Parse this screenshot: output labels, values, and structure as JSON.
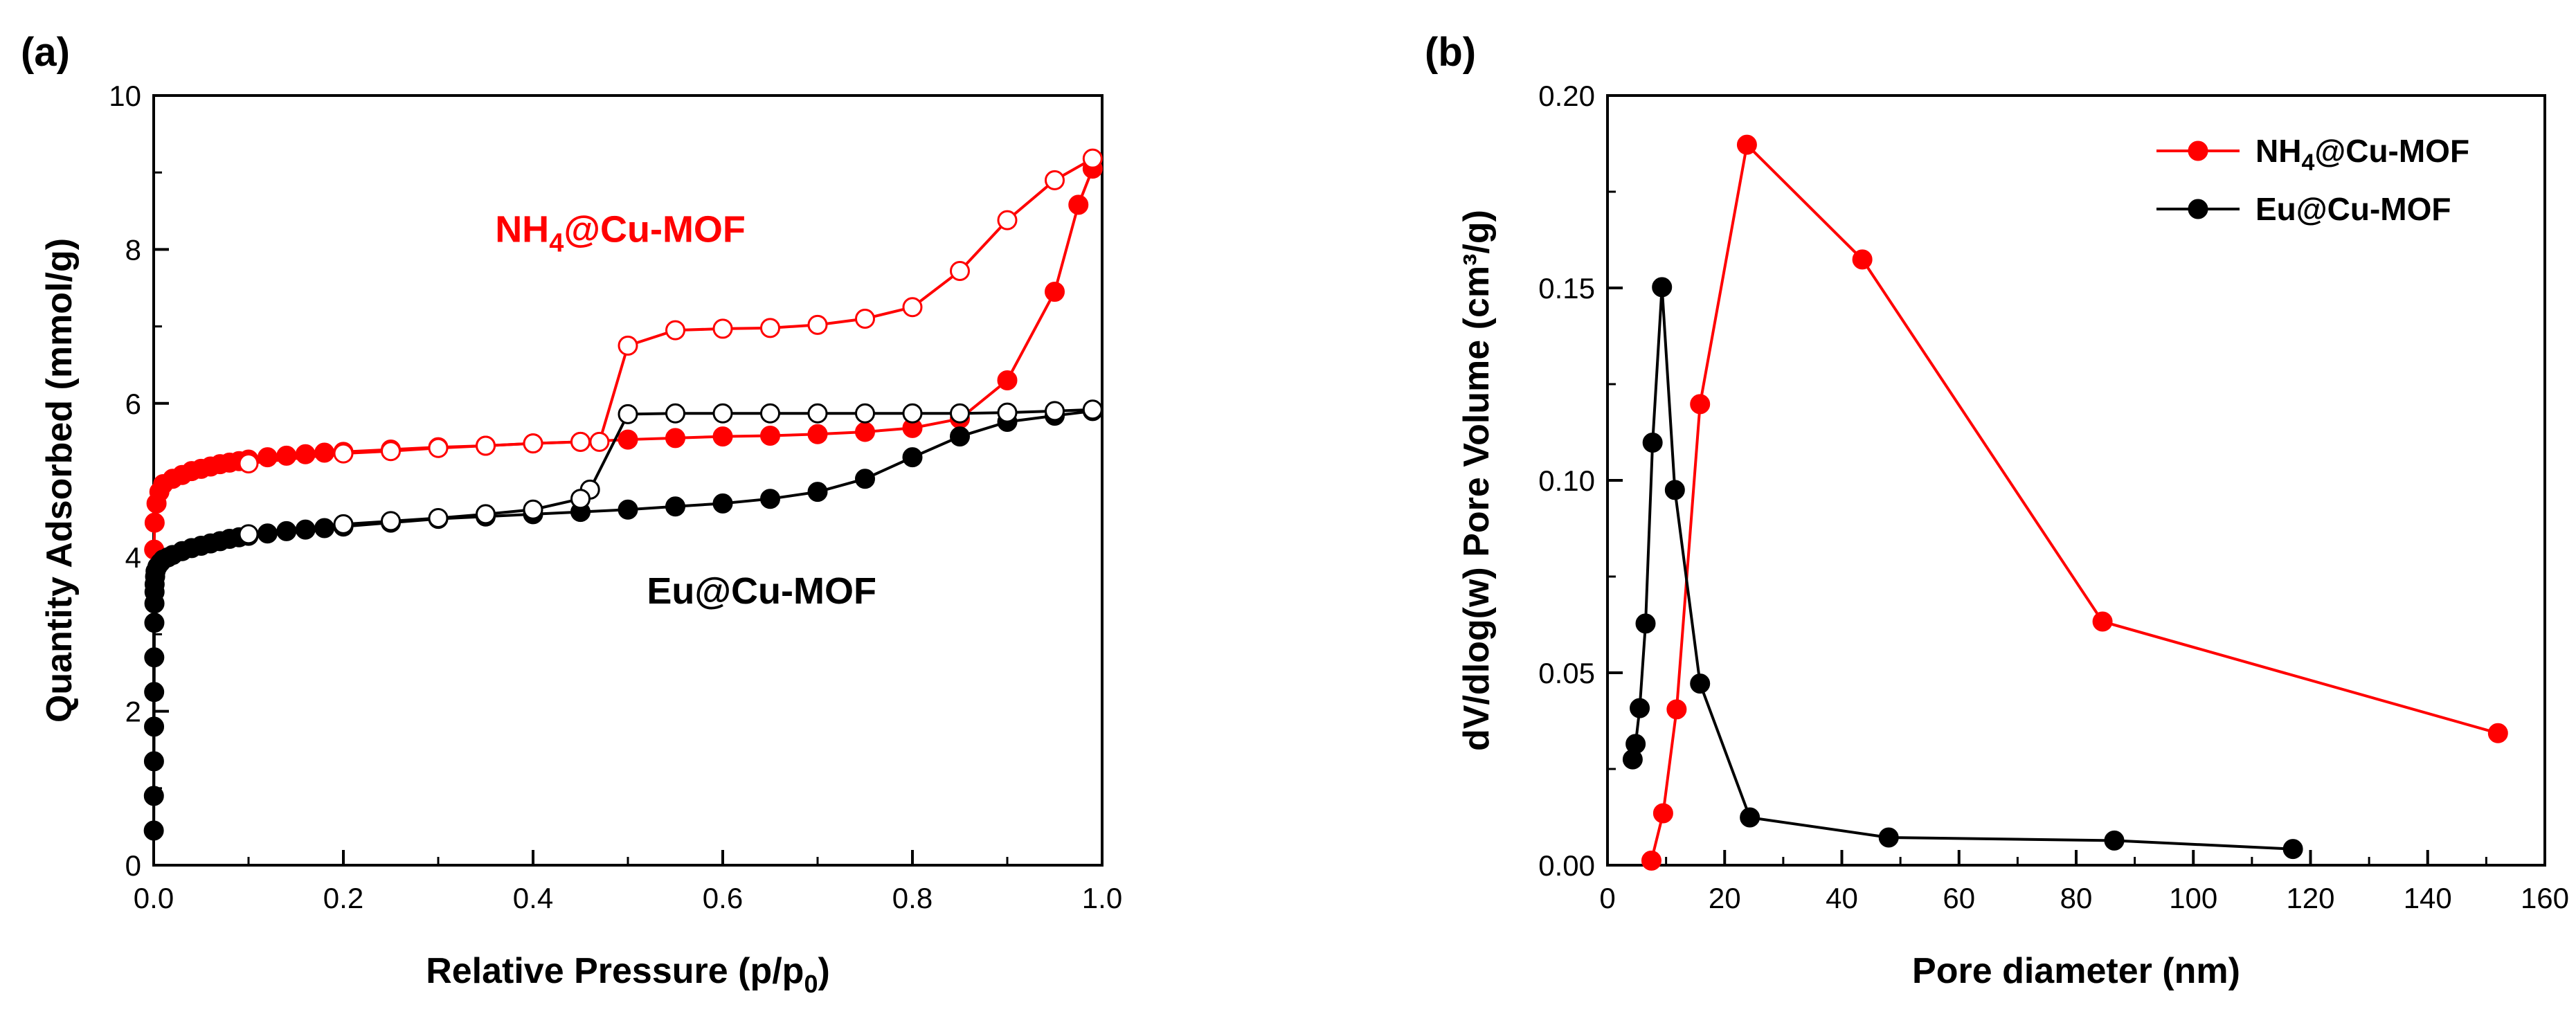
{
  "chart_data": [
    {
      "panel": "(a)",
      "type": "line",
      "title": "",
      "xlabel": "Relative Pressure (p/p0)",
      "xlabel_parts": {
        "main": "Relative Pressure (p/p",
        "sub": "0",
        "close": ")"
      },
      "ylabel": "Quantity Adsorbed (mmol/g)",
      "xlim": [
        0,
        1.0
      ],
      "ylim": [
        0,
        10
      ],
      "xticks": [
        "0.0",
        "0.2",
        "0.4",
        "0.6",
        "0.8",
        "1.0"
      ],
      "yticks": [
        "0",
        "2",
        "4",
        "6",
        "8",
        "10"
      ],
      "annotations": [
        {
          "text": "NH4@Cu-MOF",
          "parts": {
            "a": "NH",
            "sub": "4",
            "b": "@Cu-MOF"
          },
          "color": "#ff0000",
          "x": 0.36,
          "y": 8.1
        },
        {
          "text": "Eu@Cu-MOF",
          "color": "#000000",
          "x": 0.52,
          "y": 3.4
        }
      ],
      "series": [
        {
          "name": "NH4@Cu-MOF adsorption",
          "color": "#ff0000",
          "marker": "filled",
          "x": [
            0.0005,
            0.001,
            0.003,
            0.006,
            0.01,
            0.02,
            0.03,
            0.04,
            0.05,
            0.06,
            0.07,
            0.08,
            0.09,
            0.1,
            0.12,
            0.14,
            0.16,
            0.18,
            0.2,
            0.25,
            0.3,
            0.35,
            0.4,
            0.45,
            0.5,
            0.55,
            0.6,
            0.65,
            0.7,
            0.75,
            0.8,
            0.85,
            0.9,
            0.95,
            0.975,
            0.99
          ],
          "y": [
            4.1,
            4.45,
            4.7,
            4.85,
            4.95,
            5.02,
            5.07,
            5.12,
            5.15,
            5.18,
            5.21,
            5.23,
            5.25,
            5.27,
            5.3,
            5.32,
            5.34,
            5.36,
            5.37,
            5.4,
            5.43,
            5.45,
            5.48,
            5.5,
            5.53,
            5.55,
            5.57,
            5.58,
            5.6,
            5.63,
            5.68,
            5.8,
            6.3,
            7.45,
            8.58,
            9.05
          ]
        },
        {
          "name": "NH4@Cu-MOF desorption",
          "color": "#ff0000",
          "marker": "open",
          "x": [
            0.99,
            0.95,
            0.9,
            0.85,
            0.8,
            0.75,
            0.7,
            0.65,
            0.6,
            0.55,
            0.5,
            0.47,
            0.45,
            0.4,
            0.35,
            0.3,
            0.25,
            0.2,
            0.1
          ],
          "y": [
            9.18,
            8.9,
            8.38,
            7.72,
            7.25,
            7.1,
            7.02,
            6.98,
            6.97,
            6.95,
            6.75,
            5.5,
            5.5,
            5.48,
            5.45,
            5.42,
            5.38,
            5.35,
            5.22
          ]
        },
        {
          "name": "Eu@Cu-MOF adsorption",
          "color": "#000000",
          "marker": "filled",
          "x": [
            0.0001,
            0.0002,
            0.0003,
            0.0004,
            0.0005,
            0.0006,
            0.0007,
            0.0008,
            0.0009,
            0.001,
            0.0015,
            0.002,
            0.004,
            0.007,
            0.01,
            0.015,
            0.02,
            0.03,
            0.04,
            0.05,
            0.06,
            0.07,
            0.08,
            0.09,
            0.1,
            0.12,
            0.14,
            0.16,
            0.18,
            0.2,
            0.25,
            0.3,
            0.35,
            0.4,
            0.45,
            0.5,
            0.55,
            0.6,
            0.65,
            0.7,
            0.75,
            0.8,
            0.85,
            0.9,
            0.95,
            0.99
          ],
          "y": [
            0.45,
            0.9,
            1.35,
            1.8,
            2.25,
            2.7,
            3.15,
            3.4,
            3.55,
            3.65,
            3.75,
            3.82,
            3.88,
            3.93,
            3.97,
            4.0,
            4.03,
            4.08,
            4.12,
            4.15,
            4.18,
            4.21,
            4.24,
            4.26,
            4.28,
            4.31,
            4.34,
            4.36,
            4.38,
            4.4,
            4.45,
            4.5,
            4.53,
            4.56,
            4.59,
            4.62,
            4.66,
            4.7,
            4.76,
            4.85,
            5.02,
            5.3,
            5.57,
            5.76,
            5.84,
            5.9
          ]
        },
        {
          "name": "Eu@Cu-MOF desorption",
          "color": "#000000",
          "marker": "open",
          "x": [
            0.99,
            0.95,
            0.9,
            0.85,
            0.8,
            0.75,
            0.7,
            0.65,
            0.6,
            0.55,
            0.5,
            0.46,
            0.45,
            0.4,
            0.35,
            0.3,
            0.25,
            0.2,
            0.1
          ],
          "y": [
            5.92,
            5.9,
            5.88,
            5.87,
            5.87,
            5.87,
            5.87,
            5.87,
            5.87,
            5.87,
            5.86,
            4.88,
            4.76,
            4.62,
            4.56,
            4.51,
            4.47,
            4.43,
            4.3
          ]
        }
      ]
    },
    {
      "panel": "(b)",
      "type": "line",
      "title": "",
      "xlabel": "Pore diameter (nm)",
      "ylabel": "dV/dlog(w) Pore Volume (cm³/g)",
      "xlim": [
        0,
        160
      ],
      "ylim": [
        0,
        0.2
      ],
      "xticks": [
        "0",
        "20",
        "40",
        "60",
        "80",
        "100",
        "120",
        "140",
        "160"
      ],
      "yticks": [
        "0.00",
        "0.05",
        "0.10",
        "0.15",
        "0.20"
      ],
      "legend_position": "top-right",
      "series": [
        {
          "name": "NH4@Cu-MOF",
          "legend_parts": {
            "a": "NH",
            "sub": "4",
            "b": "@Cu-MOF"
          },
          "color": "#ff0000",
          "marker": "filled",
          "x": [
            7.5,
            9.5,
            11.8,
            15.8,
            23.8,
            43.5,
            84.5,
            152
          ],
          "y": [
            0.0012,
            0.0135,
            0.0405,
            0.1198,
            0.1872,
            0.1574,
            0.0633,
            0.0343
          ]
        },
        {
          "name": "Eu@Cu-MOF",
          "legend_parts": {
            "a": "Eu@Cu-MOF",
            "sub": "",
            "b": ""
          },
          "color": "#000000",
          "marker": "filled",
          "x": [
            4.3,
            4.8,
            5.5,
            6.5,
            7.7,
            9.3,
            11.5,
            15.8,
            24.3,
            48,
            86.5,
            117
          ],
          "y": [
            0.0275,
            0.0315,
            0.0408,
            0.0628,
            0.1098,
            0.1502,
            0.0975,
            0.0472,
            0.0124,
            0.0072,
            0.0064,
            0.0042
          ]
        }
      ]
    }
  ]
}
